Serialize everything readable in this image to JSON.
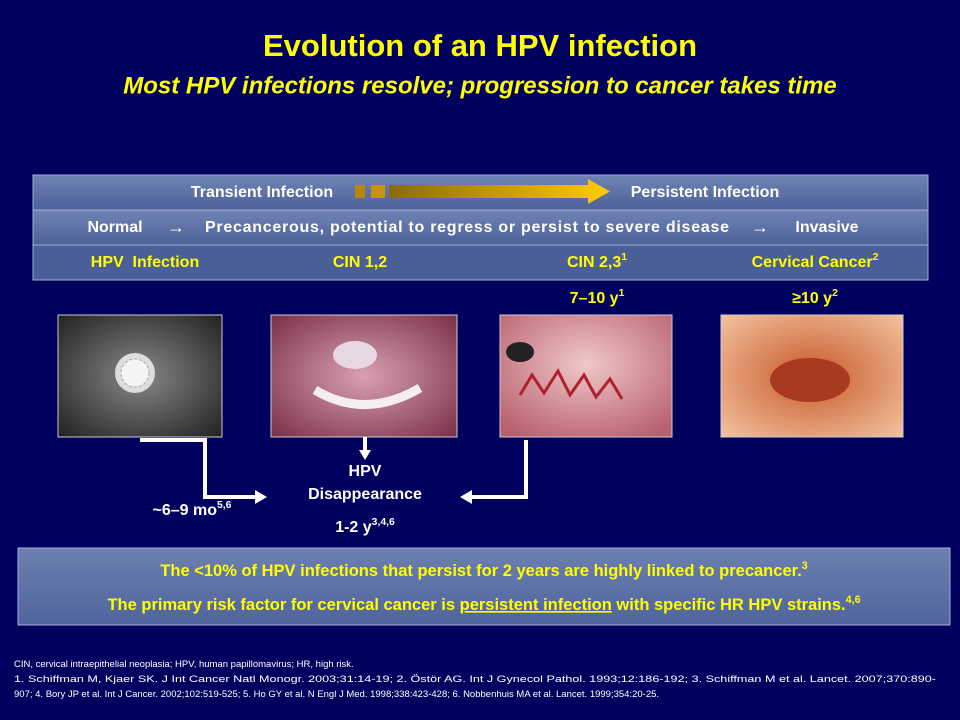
{
  "title": "Evolution of an HPV infection",
  "subtitle": "Most HPV infections resolve; progression to cancer takes time",
  "table": {
    "rows": [
      [
        "Transient Infection",
        "Persistent Infection"
      ],
      [
        "Normal",
        "Precancerous, potential to regress or persist to severe disease",
        "Invasive"
      ],
      [
        {
          "text": "HPV  Infection"
        },
        {
          "text": "CIN 1,2"
        },
        {
          "text": "CIN 2,3",
          "sup": "1"
        },
        {
          "text": "Cervical Cancer",
          "sup": "2"
        }
      ]
    ]
  },
  "durations": [
    {
      "text": "7–10 y",
      "sup": "1"
    },
    {
      "text": "≥10 y",
      "sup": "2"
    }
  ],
  "flow": {
    "clearance_time": {
      "text": "~6–9 mo",
      "sup": "5,6"
    },
    "outcome": [
      "HPV",
      "Disappearance"
    ],
    "outcome_time": {
      "text": "1-2 y",
      "sup": "3,4,6"
    }
  },
  "callout": {
    "line1": {
      "text": "The <10% of HPV infections that persist for 2 years are highly linked to precancer.",
      "sup": "3"
    },
    "line2": {
      "before": "The primary risk factor for cervical cancer is ",
      "underlined": "persistent infection",
      "after": " with specific HR HPV strains.",
      "sup": "4,6"
    }
  },
  "footnotes": [
    "CIN, cervical intraepithelial neoplasia; HPV, human papillomavirus; HR, high risk.",
    "1. Schiffman M, Kjaer SK. J Int Cancer Natl Monogr. 2003;31:14-19; 2. Östör AG. Int J Gynecol Pathol. 1993;12:186-192; 3. Schiffman M et al. Lancet. 2007;370:890-",
    "907; 4. Bory JP et al. Int J Cancer. 2002;102:519-525; 5. Ho GY et al. N Engl J Med. 1998;338:423-428; 6. Nobbenhuis MA et al. Lancet. 1999;354:20-25."
  ]
}
